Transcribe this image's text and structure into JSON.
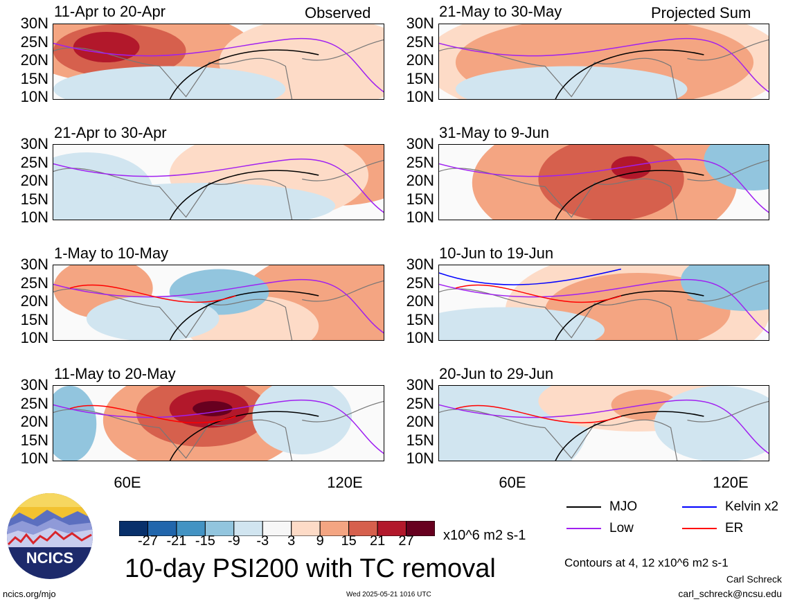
{
  "chart_data": {
    "type": "heatmap",
    "title": "10-day PSI200 with TC removal",
    "units": "x10^6 m2 s-1",
    "contour_note": "Contours at 4, 12 x10^6 m2 s-1",
    "left_column_tag": "Observed",
    "right_column_tag": "Projected Sum",
    "y_ticks": [
      "30N",
      "25N",
      "20N",
      "15N",
      "10N"
    ],
    "x_ticks": [
      "60E",
      "120E"
    ],
    "ylim": [
      10,
      30
    ],
    "xlim": [
      40,
      128
    ],
    "colorbar": {
      "labels": [
        "-27",
        "-21",
        "-15",
        "-9",
        "-3",
        "3",
        "9",
        "15",
        "21",
        "27"
      ],
      "colors": [
        "#08306b",
        "#2166ac",
        "#4393c3",
        "#92c5de",
        "#d1e5f0",
        "#f7f7f7",
        "#fddbc7",
        "#f4a582",
        "#d6604d",
        "#b2182b",
        "#67001f"
      ]
    },
    "legend": [
      {
        "label": "MJO",
        "color": "#000000"
      },
      {
        "label": "Kelvin x2",
        "color": "#0000ff"
      },
      {
        "label": "Low",
        "color": "#a020f0"
      },
      {
        "label": "ER",
        "color": "#ff0000"
      }
    ],
    "panels": [
      {
        "period": "11-Apr to 20-Apr",
        "column": "left",
        "row": 0
      },
      {
        "period": "21-Apr to 30-Apr",
        "column": "left",
        "row": 1
      },
      {
        "period": "1-May to 10-May",
        "column": "left",
        "row": 2
      },
      {
        "period": "11-May to 20-May",
        "column": "left",
        "row": 3
      },
      {
        "period": "21-May to 30-May",
        "column": "right",
        "row": 0
      },
      {
        "period": "31-May to 9-Jun",
        "column": "right",
        "row": 1
      },
      {
        "period": "10-Jun to 19-Jun",
        "column": "right",
        "row": 2
      },
      {
        "period": "20-Jun to 29-Jun",
        "column": "right",
        "row": 3
      }
    ]
  },
  "footer": {
    "logo_text": "NCICS",
    "url": "ncics.org/mjo",
    "timestamp": "Wed 2025-05-21 1016 UTC",
    "author": "Carl Schreck",
    "email": "carl_schreck@ncsu.edu"
  }
}
